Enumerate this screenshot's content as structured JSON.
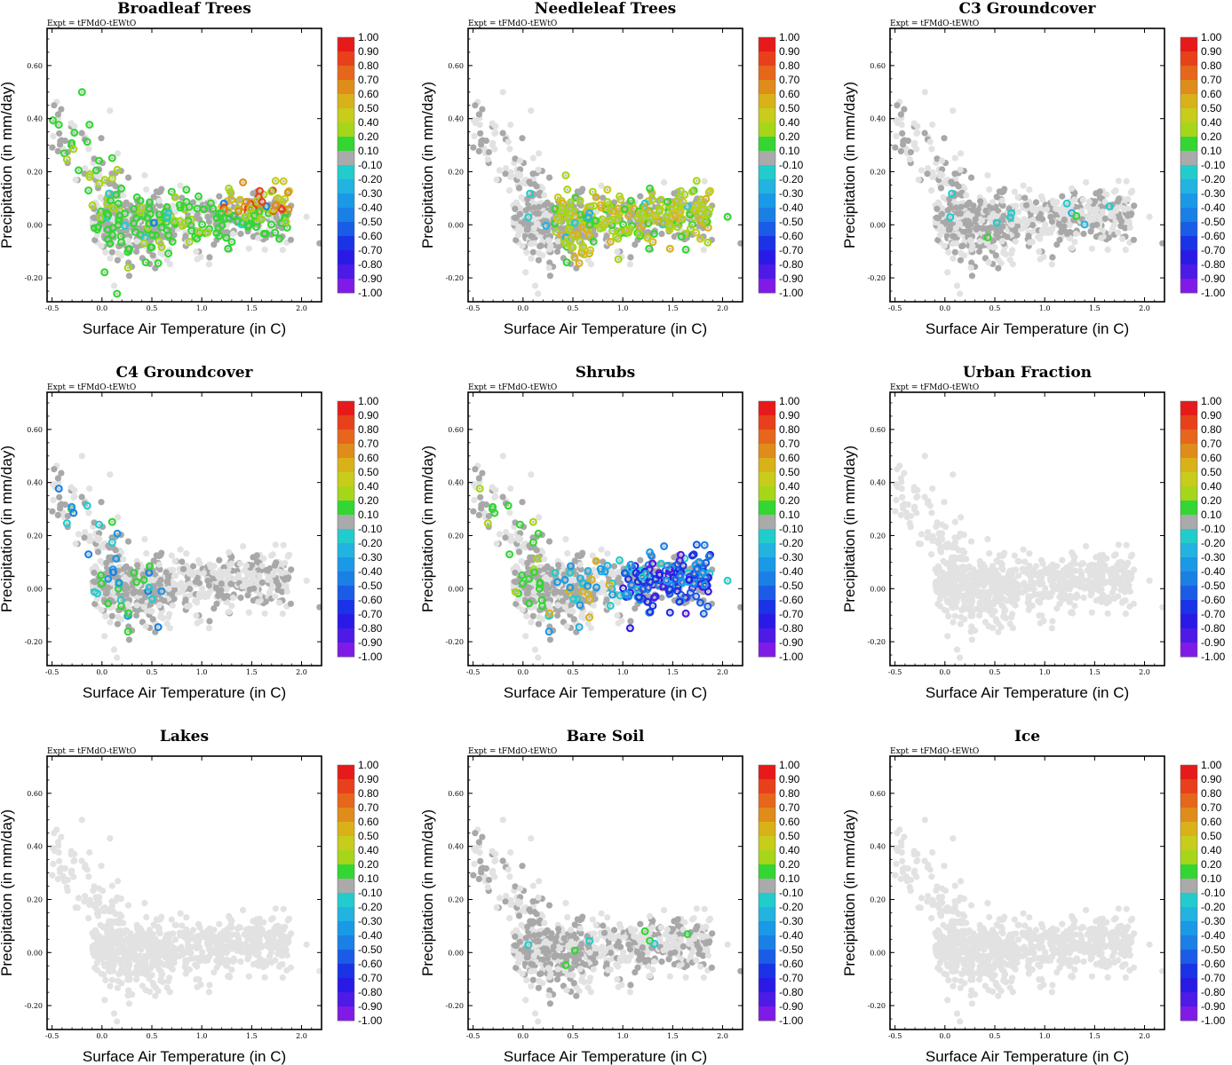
{
  "figure": {
    "experiment_label": "Expt = tFMdO-tEWtO"
  },
  "chart_data": [
    {
      "type": "scatter",
      "title": "Broadleaf Trees",
      "xlabel": "Surface Air Temperature (in C)",
      "ylabel": "Precipitation (in mm/day)",
      "xlim": [
        -0.55,
        2.2
      ],
      "ylim": [
        -0.29,
        0.74
      ],
      "xticks": [
        "-0.5",
        "0.0",
        "0.5",
        "1.0",
        "1.5",
        "2.0"
      ],
      "yticks": [
        "-0.20",
        "0.00",
        "0.20",
        "0.40",
        "0.60"
      ],
      "highlight": "broadleaf"
    },
    {
      "type": "scatter",
      "title": "Needleleaf Trees",
      "xlabel": "Surface Air Temperature (in C)",
      "ylabel": "Precipitation (in mm/day)",
      "xlim": [
        -0.55,
        2.2
      ],
      "ylim": [
        -0.29,
        0.74
      ],
      "xticks": [
        "-0.5",
        "0.0",
        "0.5",
        "1.0",
        "1.5",
        "2.0"
      ],
      "yticks": [
        "-0.20",
        "0.00",
        "0.20",
        "0.40",
        "0.60"
      ],
      "highlight": "needleleaf"
    },
    {
      "type": "scatter",
      "title": "C3 Groundcover",
      "xlabel": "Surface Air Temperature (in C)",
      "ylabel": "Precipitation (in mm/day)",
      "xlim": [
        -0.55,
        2.2
      ],
      "ylim": [
        -0.29,
        0.74
      ],
      "xticks": [
        "-0.5",
        "0.0",
        "0.5",
        "1.0",
        "1.5",
        "2.0"
      ],
      "yticks": [
        "-0.20",
        "0.00",
        "0.20",
        "0.40",
        "0.60"
      ],
      "highlight": "c3"
    },
    {
      "type": "scatter",
      "title": "C4 Groundcover",
      "xlabel": "Surface Air Temperature (in C)",
      "ylabel": "Precipitation (in mm/day)",
      "xlim": [
        -0.55,
        2.2
      ],
      "ylim": [
        -0.29,
        0.74
      ],
      "xticks": [
        "-0.5",
        "0.0",
        "0.5",
        "1.0",
        "1.5",
        "2.0"
      ],
      "yticks": [
        "-0.20",
        "0.00",
        "0.20",
        "0.40",
        "0.60"
      ],
      "highlight": "c4"
    },
    {
      "type": "scatter",
      "title": "Shrubs",
      "xlabel": "Surface Air Temperature (in C)",
      "ylabel": "Precipitation (in mm/day)",
      "xlim": [
        -0.55,
        2.2
      ],
      "ylim": [
        -0.29,
        0.74
      ],
      "xticks": [
        "-0.5",
        "0.0",
        "0.5",
        "1.0",
        "1.5",
        "2.0"
      ],
      "yticks": [
        "-0.20",
        "0.00",
        "0.20",
        "0.40",
        "0.60"
      ],
      "highlight": "shrubs"
    },
    {
      "type": "scatter",
      "title": "Urban Fraction",
      "xlabel": "Surface Air Temperature (in C)",
      "ylabel": "Precipitation (in mm/day)",
      "xlim": [
        -0.55,
        2.2
      ],
      "ylim": [
        -0.29,
        0.74
      ],
      "xticks": [
        "-0.5",
        "0.0",
        "0.5",
        "1.0",
        "1.5",
        "2.0"
      ],
      "yticks": [
        "-0.20",
        "0.00",
        "0.20",
        "0.40",
        "0.60"
      ],
      "highlight": "none"
    },
    {
      "type": "scatter",
      "title": "Lakes",
      "xlabel": "Surface Air Temperature (in C)",
      "ylabel": "Precipitation (in mm/day)",
      "xlim": [
        -0.55,
        2.2
      ],
      "ylim": [
        -0.29,
        0.74
      ],
      "xticks": [
        "-0.5",
        "0.0",
        "0.5",
        "1.0",
        "1.5",
        "2.0"
      ],
      "yticks": [
        "-0.20",
        "0.00",
        "0.20",
        "0.40",
        "0.60"
      ],
      "highlight": "none"
    },
    {
      "type": "scatter",
      "title": "Bare Soil",
      "xlabel": "Surface Air Temperature (in C)",
      "ylabel": "Precipitation (in mm/day)",
      "xlim": [
        -0.55,
        2.2
      ],
      "ylim": [
        -0.29,
        0.74
      ],
      "xticks": [
        "-0.5",
        "0.0",
        "0.5",
        "1.0",
        "1.5",
        "2.0"
      ],
      "yticks": [
        "-0.20",
        "0.00",
        "0.20",
        "0.40",
        "0.60"
      ],
      "highlight": "baresoil"
    },
    {
      "type": "scatter",
      "title": "Ice",
      "xlabel": "Surface Air Temperature (in C)",
      "ylabel": "Precipitation (in mm/day)",
      "xlim": [
        -0.55,
        2.2
      ],
      "ylim": [
        -0.29,
        0.74
      ],
      "xticks": [
        "-0.5",
        "0.0",
        "0.5",
        "1.0",
        "1.5",
        "2.0"
      ],
      "yticks": [
        "-0.20",
        "0.00",
        "0.20",
        "0.40",
        "0.60"
      ],
      "highlight": "none"
    }
  ],
  "colorbar": {
    "labels": [
      "1.00",
      "0.90",
      "0.80",
      "0.70",
      "0.60",
      "0.50",
      "0.40",
      "0.20",
      "0.10",
      "-0.10",
      "-0.20",
      "-0.30",
      "-0.40",
      "-0.50",
      "-0.60",
      "-0.70",
      "-0.80",
      "-0.90",
      "-1.00"
    ],
    "colors": [
      "#e61a1a",
      "#e8401a",
      "#e6661c",
      "#e08c1a",
      "#d9b21a",
      "#c8cc1a",
      "#a6d61a",
      "#33d633",
      "#aaaaaa",
      "#22cccc",
      "#22b3e0",
      "#1a99e6",
      "#1a80e6",
      "#1a5ce6",
      "#1a33e6",
      "#2a1ae6",
      "#4d1ae6",
      "#801ae6"
    ]
  }
}
